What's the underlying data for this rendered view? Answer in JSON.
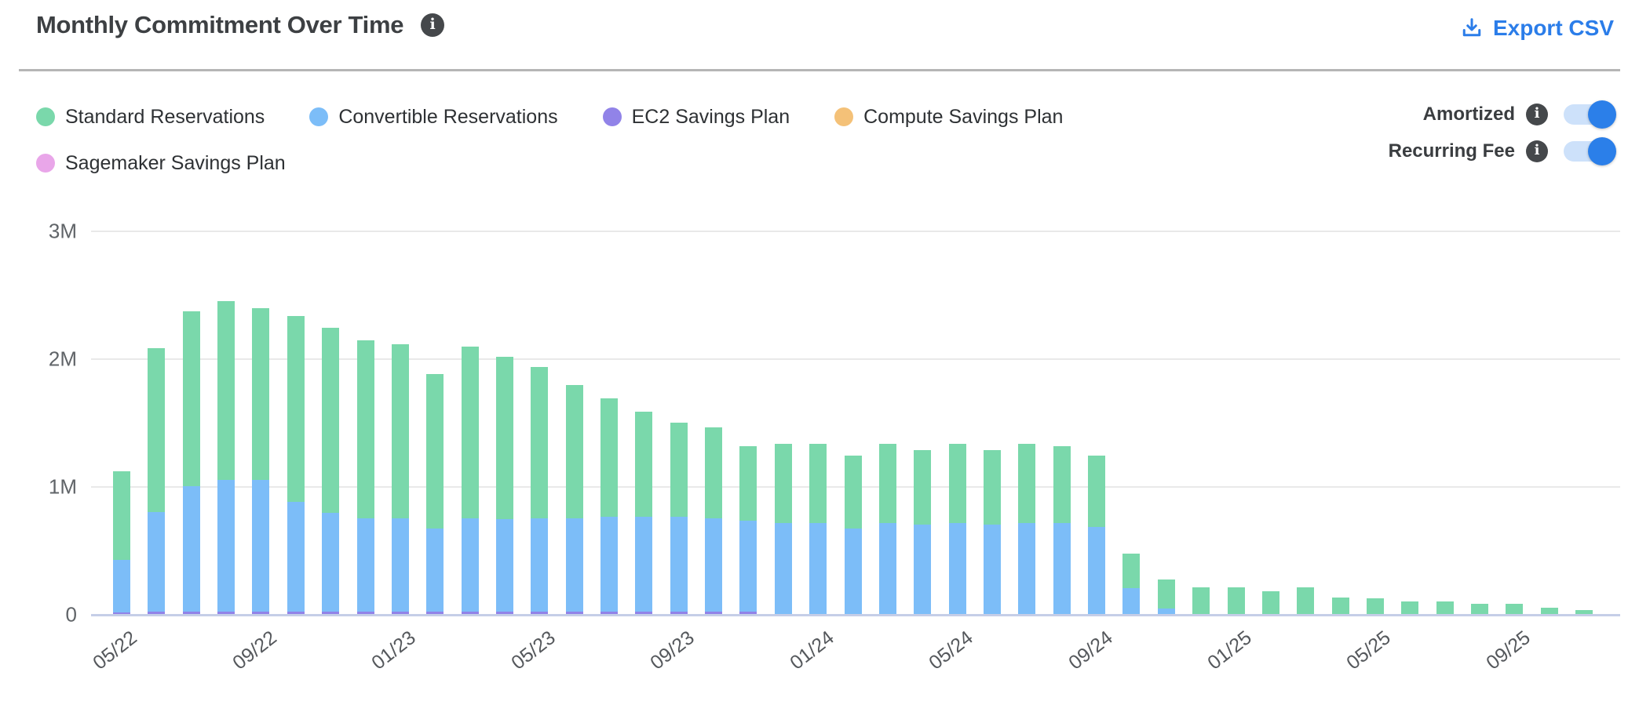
{
  "header": {
    "title": "Monthly Commitment Over Time",
    "title_info": "info",
    "export_label": "Export CSV"
  },
  "legend": [
    {
      "label": "Standard Reservations",
      "color": "#7ad8ab"
    },
    {
      "label": "Convertible Reservations",
      "color": "#7cbdf8"
    },
    {
      "label": "EC2 Savings Plan",
      "color": "#9183e8"
    },
    {
      "label": "Compute Savings Plan",
      "color": "#f4c178"
    },
    {
      "label": "Sagemaker Savings Plan",
      "color": "#e9a6e9"
    }
  ],
  "toggles": [
    {
      "label": "Amortized",
      "state": "on"
    },
    {
      "label": "Recurring Fee",
      "state": "on"
    }
  ],
  "colors": {
    "accent_blue": "#2b7de9",
    "toggle_track": "#cde1fa",
    "info_badge": "#45484b",
    "gridline": "#e9e9e9",
    "baseline": "#c5cee7",
    "axis_text": "#606468"
  },
  "chart_data": {
    "type": "bar",
    "stacked": true,
    "unit": "millions",
    "ylim": [
      0,
      3
    ],
    "y_tick_labels": [
      "0",
      "1M",
      "2M",
      "3M"
    ],
    "x_tick_labels": [
      "05/22",
      "09/22",
      "01/23",
      "05/23",
      "09/23",
      "01/24",
      "05/24",
      "09/24",
      "01/25",
      "05/25",
      "09/25"
    ],
    "categories": [
      "05/22",
      "06/22",
      "07/22",
      "08/22",
      "09/22",
      "10/22",
      "11/22",
      "12/22",
      "01/23",
      "02/23",
      "03/23",
      "04/23",
      "05/23",
      "06/23",
      "07/23",
      "08/23",
      "09/23",
      "10/23",
      "11/23",
      "12/23",
      "01/24",
      "02/24",
      "03/24",
      "04/24",
      "05/24",
      "06/24",
      "07/24",
      "08/24",
      "09/24",
      "10/24",
      "11/24",
      "12/24",
      "01/25",
      "02/25",
      "03/25",
      "04/25",
      "05/25",
      "06/25",
      "07/25",
      "08/25",
      "09/25",
      "10/25",
      "11/25"
    ],
    "series": [
      {
        "name": "EC2 Savings Plan",
        "color": "#9183e8",
        "values": [
          0.015,
          0.02,
          0.02,
          0.02,
          0.02,
          0.02,
          0.02,
          0.02,
          0.02,
          0.02,
          0.02,
          0.02,
          0.02,
          0.02,
          0.02,
          0.02,
          0.02,
          0.02,
          0.02,
          0,
          0,
          0,
          0,
          0,
          0,
          0,
          0,
          0,
          0,
          0,
          0,
          0,
          0,
          0,
          0,
          0,
          0,
          0,
          0,
          0,
          0,
          0,
          0
        ]
      },
      {
        "name": "Convertible Reservations",
        "color": "#7cbdf8",
        "values": [
          0.41,
          0.78,
          0.98,
          1.03,
          1.03,
          0.86,
          0.77,
          0.73,
          0.73,
          0.65,
          0.73,
          0.72,
          0.73,
          0.73,
          0.74,
          0.74,
          0.74,
          0.73,
          0.71,
          0.71,
          0.71,
          0.67,
          0.71,
          0.7,
          0.71,
          0.7,
          0.71,
          0.71,
          0.68,
          0.2,
          0.04,
          0,
          0,
          0,
          0,
          0,
          0,
          0,
          0,
          0,
          0,
          0,
          0
        ]
      },
      {
        "name": "Standard Reservations",
        "color": "#7ad8ab",
        "values": [
          0.69,
          1.28,
          1.37,
          1.4,
          1.34,
          1.45,
          1.45,
          1.39,
          1.36,
          1.21,
          1.34,
          1.27,
          1.18,
          1.04,
          0.93,
          0.82,
          0.74,
          0.71,
          0.58,
          0.62,
          0.62,
          0.57,
          0.62,
          0.58,
          0.62,
          0.58,
          0.62,
          0.6,
          0.56,
          0.27,
          0.23,
          0.21,
          0.21,
          0.18,
          0.21,
          0.13,
          0.12,
          0.1,
          0.1,
          0.08,
          0.08,
          0.05,
          0.03
        ]
      },
      {
        "name": "Compute Savings Plan",
        "color": "#f4c178",
        "values": [
          0,
          0,
          0,
          0,
          0,
          0,
          0,
          0,
          0,
          0,
          0,
          0,
          0,
          0,
          0,
          0,
          0,
          0,
          0,
          0,
          0,
          0,
          0,
          0,
          0,
          0,
          0,
          0,
          0,
          0,
          0,
          0,
          0,
          0,
          0,
          0,
          0,
          0,
          0,
          0,
          0,
          0,
          0
        ]
      },
      {
        "name": "Sagemaker Savings Plan",
        "color": "#e9a6e9",
        "values": [
          0,
          0,
          0,
          0,
          0,
          0,
          0,
          0,
          0,
          0,
          0,
          0,
          0,
          0,
          0,
          0,
          0,
          0,
          0,
          0,
          0,
          0,
          0,
          0,
          0,
          0,
          0,
          0,
          0,
          0,
          0,
          0,
          0,
          0,
          0,
          0,
          0,
          0,
          0,
          0,
          0,
          0,
          0
        ]
      }
    ],
    "legend_position": "top-left",
    "grid": true
  }
}
